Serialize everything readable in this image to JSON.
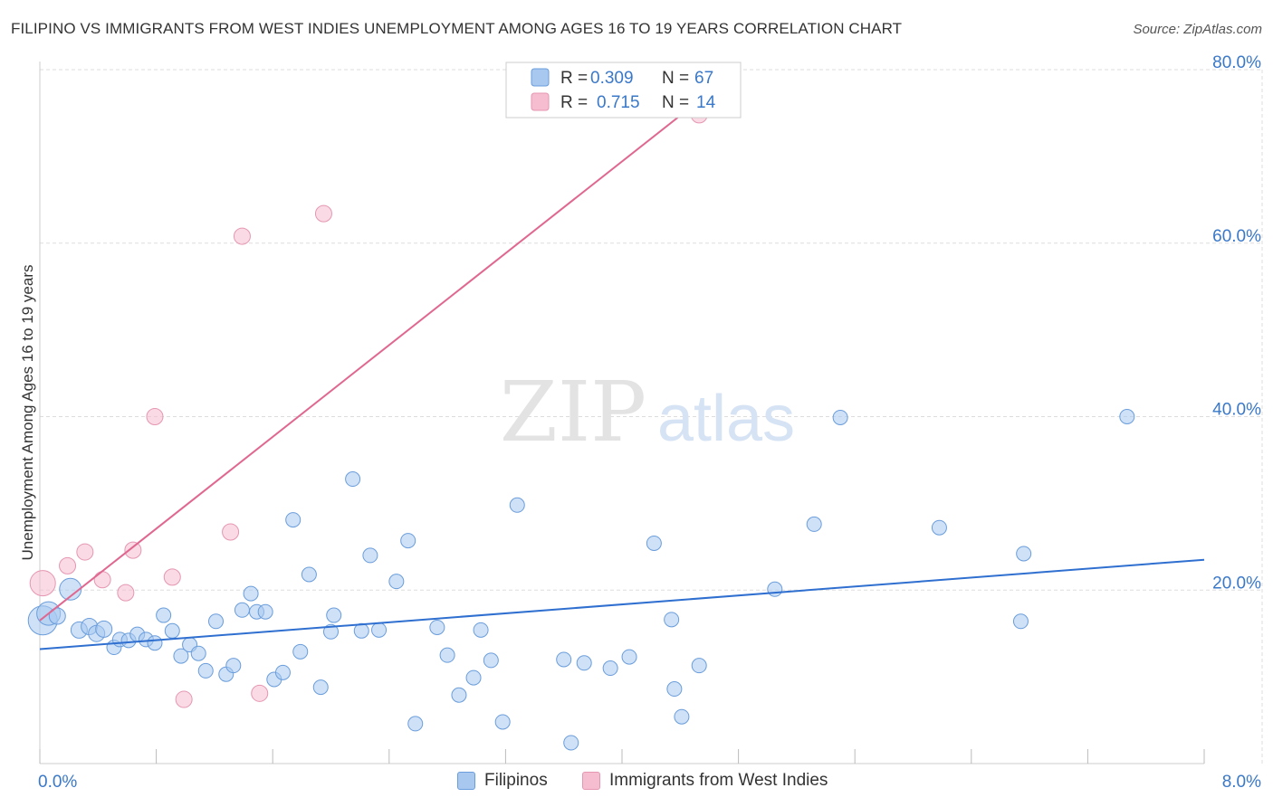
{
  "title": "FILIPINO VS IMMIGRANTS FROM WEST INDIES UNEMPLOYMENT AMONG AGES 16 TO 19 YEARS CORRELATION CHART",
  "source": "Source: ZipAtlas.com",
  "watermark": {
    "zip": "ZIP",
    "atlas": "atlas"
  },
  "colors": {
    "blue_fill": "#a8c8f0",
    "blue_stroke": "#6a9ddb",
    "blue_line": "#2f6fd0",
    "pink_fill": "#f6bdd0",
    "pink_stroke": "#e596b2",
    "pink_line": "#e0678f",
    "axis_text": "#3a78c9",
    "grid": "#dddddd"
  },
  "legend_top": {
    "rows": [
      {
        "r_label": "R = ",
        "r_value": "0.309",
        "n_label": "N = ",
        "n_value": "67"
      },
      {
        "r_label": "R = ",
        "r_value": "0.715",
        "n_label": "N = ",
        "n_value": "14"
      }
    ]
  },
  "legend_bottom": {
    "items": [
      "Filipinos",
      "Immigrants from West Indies"
    ]
  },
  "chart_data": {
    "type": "scatter",
    "title": "FILIPINO VS IMMIGRANTS FROM WEST INDIES UNEMPLOYMENT AMONG AGES 16 TO 19 YEARS CORRELATION CHART",
    "xlabel": "",
    "ylabel": "Unemployment Among Ages 16 to 19 years",
    "xlim": [
      0,
      8
    ],
    "ylim": [
      0,
      80
    ],
    "x_tick_labels": [
      "0.0%",
      "8.0%"
    ],
    "y_ticks": [
      20,
      40,
      60,
      80
    ],
    "y_tick_labels": [
      "20.0%",
      "40.0%",
      "60.0%",
      "80.0%"
    ],
    "grid": true,
    "series": [
      {
        "name": "Filipinos",
        "R": 0.309,
        "N": 67,
        "trend": {
          "x": [
            0,
            8
          ],
          "y": [
            13.2,
            23.5
          ]
        },
        "points": [
          {
            "x": 0.02,
            "y": 16.5,
            "s": 16
          },
          {
            "x": 0.06,
            "y": 17.3,
            "s": 13
          },
          {
            "x": 0.12,
            "y": 17.0,
            "s": 9
          },
          {
            "x": 0.21,
            "y": 20.1,
            "s": 12
          },
          {
            "x": 0.27,
            "y": 15.4,
            "s": 9
          },
          {
            "x": 0.34,
            "y": 15.8,
            "s": 9
          },
          {
            "x": 0.39,
            "y": 15.0,
            "s": 9
          },
          {
            "x": 0.44,
            "y": 15.5,
            "s": 9
          },
          {
            "x": 0.51,
            "y": 13.4,
            "s": 8
          },
          {
            "x": 0.55,
            "y": 14.3,
            "s": 8
          },
          {
            "x": 0.61,
            "y": 14.2,
            "s": 8
          },
          {
            "x": 0.67,
            "y": 14.9,
            "s": 8
          },
          {
            "x": 0.73,
            "y": 14.3,
            "s": 8
          },
          {
            "x": 0.79,
            "y": 13.9,
            "s": 8
          },
          {
            "x": 0.85,
            "y": 17.1,
            "s": 8
          },
          {
            "x": 0.91,
            "y": 15.3,
            "s": 8
          },
          {
            "x": 0.97,
            "y": 12.4,
            "s": 8
          },
          {
            "x": 1.03,
            "y": 13.7,
            "s": 8
          },
          {
            "x": 1.09,
            "y": 12.7,
            "s": 8
          },
          {
            "x": 1.14,
            "y": 10.7,
            "s": 8
          },
          {
            "x": 1.21,
            "y": 16.4,
            "s": 8
          },
          {
            "x": 1.28,
            "y": 10.3,
            "s": 8
          },
          {
            "x": 1.33,
            "y": 11.3,
            "s": 8
          },
          {
            "x": 1.39,
            "y": 17.7,
            "s": 8
          },
          {
            "x": 1.45,
            "y": 19.6,
            "s": 8
          },
          {
            "x": 1.49,
            "y": 17.5,
            "s": 8
          },
          {
            "x": 1.55,
            "y": 17.5,
            "s": 8
          },
          {
            "x": 1.61,
            "y": 9.7,
            "s": 8
          },
          {
            "x": 1.67,
            "y": 10.5,
            "s": 8
          },
          {
            "x": 1.74,
            "y": 28.1,
            "s": 8
          },
          {
            "x": 1.79,
            "y": 12.9,
            "s": 8
          },
          {
            "x": 1.85,
            "y": 21.8,
            "s": 8
          },
          {
            "x": 1.93,
            "y": 8.8,
            "s": 8
          },
          {
            "x": 2.0,
            "y": 15.2,
            "s": 8
          },
          {
            "x": 2.02,
            "y": 17.1,
            "s": 8
          },
          {
            "x": 2.15,
            "y": 32.8,
            "s": 8
          },
          {
            "x": 2.21,
            "y": 15.3,
            "s": 8
          },
          {
            "x": 2.27,
            "y": 24.0,
            "s": 8
          },
          {
            "x": 2.33,
            "y": 15.4,
            "s": 8
          },
          {
            "x": 2.45,
            "y": 21.0,
            "s": 8
          },
          {
            "x": 2.53,
            "y": 25.7,
            "s": 8
          },
          {
            "x": 2.58,
            "y": 4.6,
            "s": 8
          },
          {
            "x": 2.73,
            "y": 15.7,
            "s": 8
          },
          {
            "x": 2.8,
            "y": 12.5,
            "s": 8
          },
          {
            "x": 2.88,
            "y": 7.9,
            "s": 8
          },
          {
            "x": 2.98,
            "y": 9.9,
            "s": 8
          },
          {
            "x": 3.03,
            "y": 15.4,
            "s": 8
          },
          {
            "x": 3.1,
            "y": 11.9,
            "s": 8
          },
          {
            "x": 3.18,
            "y": 4.8,
            "s": 8
          },
          {
            "x": 3.28,
            "y": 29.8,
            "s": 8
          },
          {
            "x": 3.6,
            "y": 12.0,
            "s": 8
          },
          {
            "x": 3.65,
            "y": 2.4,
            "s": 8
          },
          {
            "x": 3.74,
            "y": 11.6,
            "s": 8
          },
          {
            "x": 3.92,
            "y": 11.0,
            "s": 8
          },
          {
            "x": 4.05,
            "y": 12.3,
            "s": 8
          },
          {
            "x": 4.22,
            "y": 25.4,
            "s": 8
          },
          {
            "x": 4.34,
            "y": 16.6,
            "s": 8
          },
          {
            "x": 4.36,
            "y": 8.6,
            "s": 8
          },
          {
            "x": 4.41,
            "y": 5.4,
            "s": 8
          },
          {
            "x": 4.53,
            "y": 11.3,
            "s": 8
          },
          {
            "x": 5.05,
            "y": 20.1,
            "s": 8
          },
          {
            "x": 5.32,
            "y": 27.6,
            "s": 8
          },
          {
            "x": 5.5,
            "y": 39.9,
            "s": 8
          },
          {
            "x": 6.18,
            "y": 27.2,
            "s": 8
          },
          {
            "x": 6.74,
            "y": 16.4,
            "s": 8
          },
          {
            "x": 6.76,
            "y": 24.2,
            "s": 8
          },
          {
            "x": 7.47,
            "y": 40.0,
            "s": 8
          }
        ]
      },
      {
        "name": "Immigrants from West Indies",
        "R": 0.715,
        "N": 14,
        "trend": {
          "x": [
            0,
            4.8
          ],
          "y": [
            16.5,
            80.0
          ]
        },
        "points": [
          {
            "x": 0.02,
            "y": 20.8,
            "s": 14
          },
          {
            "x": 0.19,
            "y": 22.8,
            "s": 9
          },
          {
            "x": 0.31,
            "y": 24.4,
            "s": 9
          },
          {
            "x": 0.43,
            "y": 21.2,
            "s": 9
          },
          {
            "x": 0.59,
            "y": 19.7,
            "s": 9
          },
          {
            "x": 0.64,
            "y": 24.6,
            "s": 9
          },
          {
            "x": 0.79,
            "y": 40.0,
            "s": 9
          },
          {
            "x": 0.91,
            "y": 21.5,
            "s": 9
          },
          {
            "x": 0.99,
            "y": 7.4,
            "s": 9
          },
          {
            "x": 1.31,
            "y": 26.7,
            "s": 9
          },
          {
            "x": 1.39,
            "y": 60.8,
            "s": 9
          },
          {
            "x": 1.51,
            "y": 8.1,
            "s": 9
          },
          {
            "x": 1.95,
            "y": 63.4,
            "s": 9
          },
          {
            "x": 4.53,
            "y": 74.8,
            "s": 9
          }
        ]
      }
    ]
  }
}
